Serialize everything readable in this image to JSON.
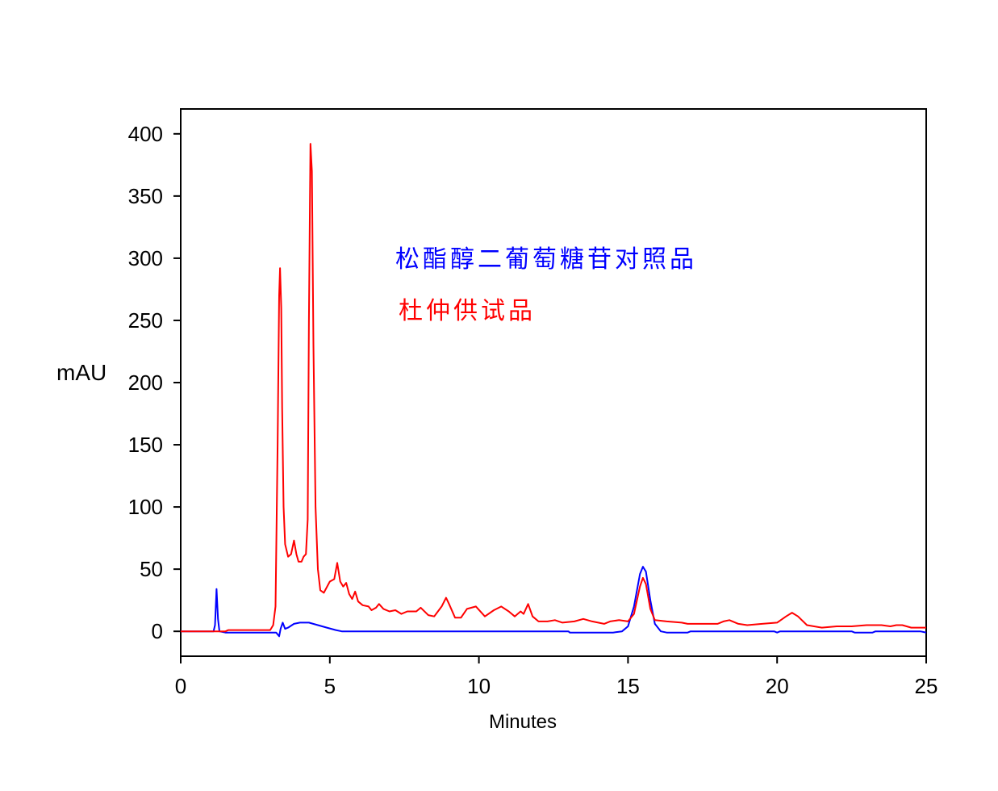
{
  "chart_data": {
    "type": "line",
    "title": "",
    "xlabel": "Minutes",
    "ylabel": "mAU",
    "xlim": [
      0,
      25
    ],
    "ylim": [
      -20,
      420
    ],
    "xticks": [
      0,
      5,
      10,
      15,
      20,
      25
    ],
    "yticks": [
      0,
      50,
      100,
      150,
      200,
      250,
      300,
      350,
      400
    ],
    "grid": false,
    "legend_placement": "top-center",
    "series": [
      {
        "name": "松酯醇二葡萄糖苷对照品",
        "color": "#0000ff",
        "points": [
          [
            0,
            0
          ],
          [
            1.1,
            0
          ],
          [
            1.15,
            5
          ],
          [
            1.2,
            34
          ],
          [
            1.25,
            10
          ],
          [
            1.3,
            0
          ],
          [
            1.5,
            -1
          ],
          [
            3.2,
            -1
          ],
          [
            3.3,
            -4
          ],
          [
            3.35,
            2
          ],
          [
            3.42,
            7
          ],
          [
            3.5,
            2
          ],
          [
            3.6,
            3
          ],
          [
            3.8,
            6
          ],
          [
            4.0,
            7
          ],
          [
            4.3,
            7
          ],
          [
            4.6,
            5
          ],
          [
            4.9,
            3
          ],
          [
            5.2,
            1
          ],
          [
            5.4,
            0
          ],
          [
            8,
            0
          ],
          [
            13,
            0
          ],
          [
            13.05,
            -1
          ],
          [
            14.5,
            -1
          ],
          [
            14.8,
            0
          ],
          [
            15.0,
            4
          ],
          [
            15.2,
            20
          ],
          [
            15.4,
            46
          ],
          [
            15.5,
            52
          ],
          [
            15.6,
            48
          ],
          [
            15.75,
            25
          ],
          [
            15.9,
            6
          ],
          [
            16.1,
            0
          ],
          [
            16.3,
            -1
          ],
          [
            17,
            -1
          ],
          [
            17.1,
            0
          ],
          [
            19.9,
            0
          ],
          [
            20,
            -1
          ],
          [
            20.1,
            0
          ],
          [
            22.5,
            0
          ],
          [
            22.6,
            -1
          ],
          [
            23.2,
            -1
          ],
          [
            23.3,
            0
          ],
          [
            24.8,
            0
          ],
          [
            25,
            -1
          ]
        ]
      },
      {
        "name": "杜仲供试品",
        "color": "#ff0000",
        "points": [
          [
            0,
            0
          ],
          [
            1.5,
            0
          ],
          [
            1.6,
            1
          ],
          [
            3.0,
            1
          ],
          [
            3.1,
            5
          ],
          [
            3.18,
            20
          ],
          [
            3.25,
            150
          ],
          [
            3.3,
            270
          ],
          [
            3.33,
            292
          ],
          [
            3.37,
            260
          ],
          [
            3.4,
            180
          ],
          [
            3.45,
            100
          ],
          [
            3.5,
            70
          ],
          [
            3.6,
            60
          ],
          [
            3.7,
            62
          ],
          [
            3.8,
            73
          ],
          [
            3.88,
            62
          ],
          [
            3.95,
            56
          ],
          [
            4.05,
            56
          ],
          [
            4.12,
            60
          ],
          [
            4.2,
            62
          ],
          [
            4.26,
            90
          ],
          [
            4.3,
            250
          ],
          [
            4.35,
            392
          ],
          [
            4.4,
            370
          ],
          [
            4.45,
            230
          ],
          [
            4.52,
            100
          ],
          [
            4.6,
            50
          ],
          [
            4.68,
            33
          ],
          [
            4.8,
            31
          ],
          [
            5.0,
            40
          ],
          [
            5.15,
            42
          ],
          [
            5.25,
            55
          ],
          [
            5.35,
            40
          ],
          [
            5.45,
            36
          ],
          [
            5.55,
            39
          ],
          [
            5.65,
            30
          ],
          [
            5.75,
            26
          ],
          [
            5.85,
            32
          ],
          [
            5.95,
            24
          ],
          [
            6.1,
            21
          ],
          [
            6.3,
            20
          ],
          [
            6.4,
            17
          ],
          [
            6.55,
            19
          ],
          [
            6.65,
            22
          ],
          [
            6.8,
            18
          ],
          [
            7.0,
            16
          ],
          [
            7.2,
            17
          ],
          [
            7.4,
            14
          ],
          [
            7.6,
            16
          ],
          [
            7.9,
            16
          ],
          [
            8.05,
            19
          ],
          [
            8.3,
            13
          ],
          [
            8.5,
            12
          ],
          [
            8.75,
            20
          ],
          [
            8.9,
            27
          ],
          [
            9.0,
            22
          ],
          [
            9.2,
            11
          ],
          [
            9.4,
            11
          ],
          [
            9.6,
            18
          ],
          [
            9.9,
            20
          ],
          [
            10.2,
            12
          ],
          [
            10.5,
            17
          ],
          [
            10.75,
            20
          ],
          [
            11.0,
            16
          ],
          [
            11.2,
            12
          ],
          [
            11.4,
            16
          ],
          [
            11.5,
            14
          ],
          [
            11.65,
            22
          ],
          [
            11.8,
            12
          ],
          [
            12.0,
            8
          ],
          [
            12.3,
            8
          ],
          [
            12.55,
            9
          ],
          [
            12.8,
            7
          ],
          [
            13.2,
            8
          ],
          [
            13.5,
            10
          ],
          [
            13.8,
            8
          ],
          [
            14.2,
            6
          ],
          [
            14.4,
            8
          ],
          [
            14.7,
            9
          ],
          [
            15.0,
            8
          ],
          [
            15.2,
            14
          ],
          [
            15.4,
            36
          ],
          [
            15.5,
            43
          ],
          [
            15.6,
            38
          ],
          [
            15.75,
            18
          ],
          [
            15.9,
            9
          ],
          [
            16.3,
            8
          ],
          [
            16.8,
            7
          ],
          [
            17.0,
            6
          ],
          [
            17.5,
            6
          ],
          [
            18.0,
            6
          ],
          [
            18.2,
            8
          ],
          [
            18.4,
            9
          ],
          [
            18.7,
            6
          ],
          [
            19.0,
            5
          ],
          [
            19.5,
            6
          ],
          [
            20.0,
            7
          ],
          [
            20.3,
            12
          ],
          [
            20.5,
            15
          ],
          [
            20.7,
            12
          ],
          [
            21.0,
            5
          ],
          [
            21.5,
            3
          ],
          [
            22.0,
            4
          ],
          [
            22.5,
            4
          ],
          [
            23.0,
            5
          ],
          [
            23.5,
            5
          ],
          [
            23.8,
            4
          ],
          [
            24.0,
            5
          ],
          [
            24.2,
            5
          ],
          [
            24.5,
            3
          ],
          [
            25,
            3
          ]
        ]
      }
    ]
  }
}
